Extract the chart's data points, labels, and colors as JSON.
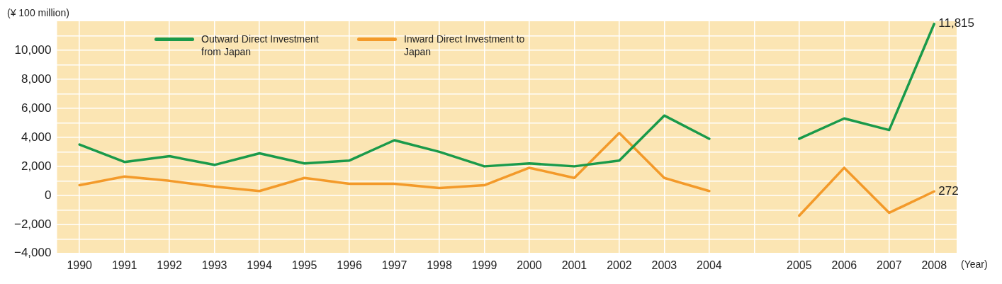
{
  "chart_data": {
    "type": "line",
    "ylabel": "(¥ 100 million)",
    "xlabel": "(Year)",
    "categories": [
      "1990",
      "1991",
      "1992",
      "1993",
      "1994",
      "1995",
      "1996",
      "1997",
      "1998",
      "1999",
      "2000",
      "2001",
      "2002",
      "2003",
      "2004",
      null,
      "2005",
      "2006",
      "2007",
      "2008"
    ],
    "series": [
      {
        "name": "Outward Direct Investment from Japan",
        "color": "#1a9a4a",
        "values": [
          3500,
          2300,
          2700,
          2100,
          2900,
          2200,
          2400,
          3800,
          3000,
          2000,
          2200,
          2000,
          2400,
          5500,
          3900,
          null,
          3900,
          5300,
          4500,
          11815
        ],
        "value_labels": [
          null,
          null,
          null,
          null,
          null,
          null,
          null,
          null,
          null,
          null,
          null,
          null,
          null,
          null,
          null,
          null,
          null,
          null,
          null,
          "11,815"
        ]
      },
      {
        "name": "Inward Direct Investment to Japan",
        "color": "#f39a2a",
        "values": [
          700,
          1300,
          1000,
          600,
          300,
          1200,
          800,
          800,
          500,
          700,
          1900,
          1200,
          4300,
          1200,
          300,
          null,
          -1400,
          1900,
          -1200,
          272
        ],
        "value_labels": [
          null,
          null,
          null,
          null,
          null,
          null,
          null,
          null,
          null,
          null,
          null,
          null,
          null,
          null,
          null,
          null,
          null,
          null,
          null,
          "272"
        ]
      }
    ],
    "ylim": [
      -4000,
      12000
    ],
    "yticks": [
      {
        "value": -4000,
        "label": "−4,000"
      },
      {
        "value": -3000,
        "label": null
      },
      {
        "value": -2000,
        "label": "−2,000"
      },
      {
        "value": -1000,
        "label": null
      },
      0,
      {
        "value": 1000,
        "label": null
      },
      {
        "value": 2000,
        "label": "2,000"
      },
      {
        "value": 3000,
        "label": null
      },
      {
        "value": 4000,
        "label": "4,000"
      },
      {
        "value": 5000,
        "label": null
      },
      {
        "value": 6000,
        "label": "6,000"
      },
      {
        "value": 7000,
        "label": null
      },
      {
        "value": 8000,
        "label": "8,000"
      },
      {
        "value": 9000,
        "label": null
      },
      {
        "value": 10000,
        "label": "10,000"
      },
      {
        "value": 11000,
        "label": null
      }
    ],
    "grid": true,
    "legend": "top left",
    "marker": "none",
    "line_style": "solid"
  }
}
